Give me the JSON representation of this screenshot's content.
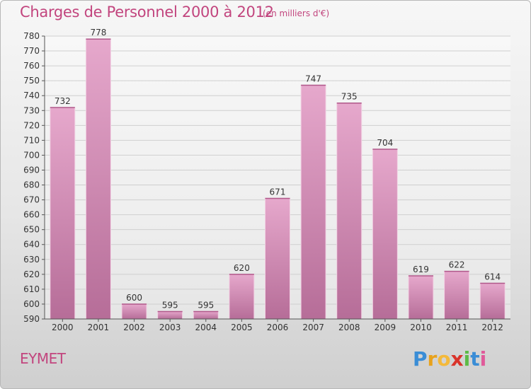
{
  "title": "Charges de Personnel 2000 à 2012",
  "subtitle": "(en milliers d'€)",
  "commune": "EYMET",
  "logo": {
    "letters": [
      "P",
      "r",
      "o",
      "x",
      "i",
      "t",
      "i"
    ],
    "colors": [
      "#3a8dd6",
      "#e8a21c",
      "#f4b93a",
      "#d9342b",
      "#5dbb46",
      "#3a8dd6",
      "#e05a9a"
    ]
  },
  "colors": {
    "accent": "#c2457e",
    "bar": "#d98fb8"
  },
  "chart_data": {
    "type": "bar",
    "categories": [
      "2000",
      "2001",
      "2002",
      "2003",
      "2004",
      "2005",
      "2006",
      "2007",
      "2008",
      "2009",
      "2010",
      "2011",
      "2012"
    ],
    "values": [
      732,
      778,
      600,
      595,
      595,
      620,
      671,
      747,
      735,
      704,
      619,
      622,
      614
    ],
    "ylim": [
      590,
      780
    ],
    "yticks": [
      590,
      600,
      610,
      620,
      630,
      640,
      650,
      660,
      670,
      680,
      690,
      700,
      710,
      720,
      730,
      740,
      750,
      760,
      770,
      780
    ],
    "grid": true
  }
}
